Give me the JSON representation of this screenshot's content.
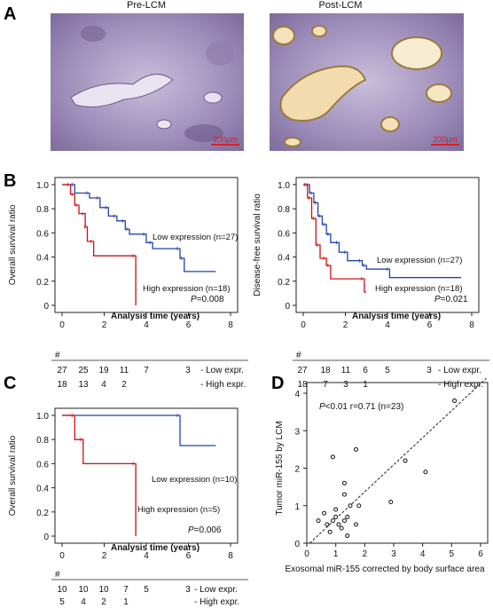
{
  "panel_labels": {
    "A": "A",
    "B": "B",
    "C": "C",
    "D": "D"
  },
  "panel_a": {
    "left_title": "Pre-LCM",
    "right_title": "Post-LCM",
    "scale_bar_left": "200μm",
    "scale_bar_right": "200μm",
    "colors": {
      "tissue_purple": "#8a7aa8",
      "stain_tan": "#c8b07a",
      "scale_red": "#d8202a"
    }
  },
  "chart_data": [
    {
      "id": "b_left",
      "type": "line",
      "step": true,
      "ylabel": "Overall survival ratio",
      "xlabel": "Analysis time (years)",
      "xlim": [
        0,
        8
      ],
      "ylim": [
        0,
        1
      ],
      "xticks": [
        "0",
        "2",
        "4",
        "6",
        "8"
      ],
      "yticks": [
        "0",
        "0.2",
        "0.4",
        "0.6",
        "0.8",
        "1.0"
      ],
      "pvalue_prefix": "P",
      "pvalue": "=0.008",
      "series": [
        {
          "name": "Low expression (n=27)",
          "color": "#2244aa",
          "points": [
            [
              0,
              1.0
            ],
            [
              0.6,
              1.0
            ],
            [
              0.6,
              0.93
            ],
            [
              1.3,
              0.93
            ],
            [
              1.3,
              0.89
            ],
            [
              1.8,
              0.89
            ],
            [
              1.8,
              0.81
            ],
            [
              2.2,
              0.81
            ],
            [
              2.2,
              0.74
            ],
            [
              2.6,
              0.74
            ],
            [
              2.6,
              0.7
            ],
            [
              3.0,
              0.7
            ],
            [
              3.0,
              0.63
            ],
            [
              3.2,
              0.63
            ],
            [
              3.2,
              0.59
            ],
            [
              4.0,
              0.59
            ],
            [
              4.0,
              0.52
            ],
            [
              4.3,
              0.52
            ],
            [
              4.3,
              0.47
            ],
            [
              5.6,
              0.47
            ],
            [
              5.6,
              0.39
            ],
            [
              5.8,
              0.39
            ],
            [
              5.8,
              0.28
            ],
            [
              7.3,
              0.28
            ]
          ]
        },
        {
          "name": "High expression (n=18)",
          "color": "#cc1111",
          "points": [
            [
              0,
              1.0
            ],
            [
              0.4,
              1.0
            ],
            [
              0.4,
              0.92
            ],
            [
              0.6,
              0.92
            ],
            [
              0.6,
              0.83
            ],
            [
              0.8,
              0.83
            ],
            [
              0.8,
              0.76
            ],
            [
              1.1,
              0.76
            ],
            [
              1.1,
              0.65
            ],
            [
              1.2,
              0.65
            ],
            [
              1.2,
              0.53
            ],
            [
              1.5,
              0.53
            ],
            [
              1.5,
              0.41
            ],
            [
              3.5,
              0.41
            ],
            [
              3.5,
              0.0
            ]
          ]
        }
      ],
      "risk_table": {
        "header": "#",
        "rows": [
          {
            "label": "- Low expr.",
            "values": [
              "27",
              "25",
              "19",
              "11",
              "7",
              "",
              "3"
            ]
          },
          {
            "label": "- High expr.",
            "values": [
              "18",
              "13",
              "4",
              "2",
              "",
              "",
              ""
            ]
          }
        ]
      }
    },
    {
      "id": "b_right",
      "type": "line",
      "step": true,
      "ylabel": "Disease-free survival ratio",
      "xlabel": "Analysis time (years)",
      "xlim": [
        0,
        8
      ],
      "ylim": [
        0,
        1
      ],
      "xticks": [
        "0",
        "2",
        "4",
        "6",
        "8"
      ],
      "yticks": [
        "0",
        "0.2",
        "0.4",
        "0.6",
        "0.8",
        "1.0"
      ],
      "pvalue_prefix": "P",
      "pvalue": "=0.021",
      "series": [
        {
          "name": "Low expression (n=27)",
          "color": "#2244aa",
          "points": [
            [
              0,
              1.0
            ],
            [
              0.3,
              1.0
            ],
            [
              0.3,
              0.93
            ],
            [
              0.5,
              0.93
            ],
            [
              0.5,
              0.85
            ],
            [
              0.7,
              0.85
            ],
            [
              0.7,
              0.74
            ],
            [
              0.9,
              0.74
            ],
            [
              0.9,
              0.67
            ],
            [
              1.1,
              0.67
            ],
            [
              1.1,
              0.59
            ],
            [
              1.3,
              0.59
            ],
            [
              1.3,
              0.52
            ],
            [
              1.7,
              0.52
            ],
            [
              1.7,
              0.44
            ],
            [
              2.1,
              0.44
            ],
            [
              2.1,
              0.37
            ],
            [
              2.8,
              0.37
            ],
            [
              2.8,
              0.33
            ],
            [
              3.0,
              0.33
            ],
            [
              3.0,
              0.3
            ],
            [
              4.1,
              0.3
            ],
            [
              4.1,
              0.23
            ],
            [
              7.5,
              0.23
            ]
          ]
        },
        {
          "name": "High expression (n=18)",
          "color": "#cc1111",
          "points": [
            [
              0,
              1.0
            ],
            [
              0.2,
              1.0
            ],
            [
              0.2,
              0.89
            ],
            [
              0.4,
              0.89
            ],
            [
              0.4,
              0.72
            ],
            [
              0.6,
              0.72
            ],
            [
              0.6,
              0.5
            ],
            [
              0.8,
              0.5
            ],
            [
              0.8,
              0.39
            ],
            [
              1.1,
              0.39
            ],
            [
              1.1,
              0.33
            ],
            [
              1.3,
              0.33
            ],
            [
              1.3,
              0.22
            ],
            [
              2.9,
              0.22
            ],
            [
              2.9,
              0.11
            ],
            [
              3.0,
              0.11
            ]
          ]
        }
      ],
      "risk_table": {
        "header": "#",
        "rows": [
          {
            "label": "- Low expr.",
            "values": [
              "27",
              "18",
              "11",
              "6",
              "5",
              "",
              "3"
            ]
          },
          {
            "label": "- High expr.",
            "values": [
              "18",
              "7",
              "3",
              "1",
              "",
              "",
              ""
            ]
          }
        ]
      }
    },
    {
      "id": "c",
      "type": "line",
      "step": true,
      "ylabel": "Overall survival ratio",
      "xlabel": "Analysis time (years)",
      "xlim": [
        0,
        8
      ],
      "ylim": [
        0,
        1
      ],
      "xticks": [
        "0",
        "2",
        "4",
        "6",
        "8"
      ],
      "yticks": [
        "0",
        "0.2",
        "0.4",
        "0.6",
        "0.8",
        "1.0"
      ],
      "pvalue_prefix": "P",
      "pvalue": "=0.006",
      "series": [
        {
          "name": "Low expression (n=10)",
          "color": "#2244aa",
          "points": [
            [
              0,
              1.0
            ],
            [
              5.6,
              1.0
            ],
            [
              5.6,
              0.75
            ],
            [
              7.3,
              0.75
            ]
          ]
        },
        {
          "name": "High expression (n=5)",
          "color": "#cc1111",
          "points": [
            [
              0,
              1.0
            ],
            [
              0.6,
              1.0
            ],
            [
              0.6,
              0.8
            ],
            [
              1.0,
              0.8
            ],
            [
              1.0,
              0.6
            ],
            [
              3.5,
              0.6
            ],
            [
              3.5,
              0.0
            ]
          ]
        }
      ],
      "risk_table": {
        "header": "#",
        "rows": [
          {
            "label": "- Low expr.",
            "values": [
              "10",
              "10",
              "10",
              "7",
              "5",
              "",
              "3"
            ]
          },
          {
            "label": "- High expr.",
            "values": [
              "5",
              "4",
              "2",
              "1",
              "",
              "",
              ""
            ]
          }
        ]
      }
    },
    {
      "id": "d",
      "type": "scatter",
      "xlabel": "Exosomal miR-155 corrected by body surface area",
      "ylabel": "Tumor miR-155 by LCM",
      "xlim": [
        0,
        6
      ],
      "ylim": [
        0,
        4
      ],
      "xticks": [
        "0",
        "1",
        "2",
        "3",
        "4",
        "5",
        "6"
      ],
      "yticks": [
        "0",
        "1",
        "2",
        "3",
        "4"
      ],
      "annotation_prefix": "P",
      "annotation": "<0.01 r=0.71 (n=23)",
      "points": [
        [
          0.4,
          0.6
        ],
        [
          0.6,
          0.8
        ],
        [
          0.7,
          0.5
        ],
        [
          0.8,
          0.3
        ],
        [
          0.9,
          0.6
        ],
        [
          1.0,
          0.9
        ],
        [
          1.0,
          0.7
        ],
        [
          1.1,
          0.5
        ],
        [
          1.2,
          0.4
        ],
        [
          1.3,
          0.6
        ],
        [
          1.4,
          0.2
        ],
        [
          1.4,
          0.7
        ],
        [
          1.5,
          1.0
        ],
        [
          0.9,
          2.3
        ],
        [
          1.3,
          1.6
        ],
        [
          1.3,
          1.3
        ],
        [
          1.7,
          0.5
        ],
        [
          1.8,
          1.0
        ],
        [
          1.7,
          2.5
        ],
        [
          2.9,
          1.1
        ],
        [
          3.4,
          2.2
        ],
        [
          4.1,
          1.9
        ],
        [
          5.1,
          3.8
        ]
      ],
      "fit_line": [
        [
          0.1,
          0.0
        ],
        [
          6.2,
          4.4
        ]
      ]
    }
  ]
}
